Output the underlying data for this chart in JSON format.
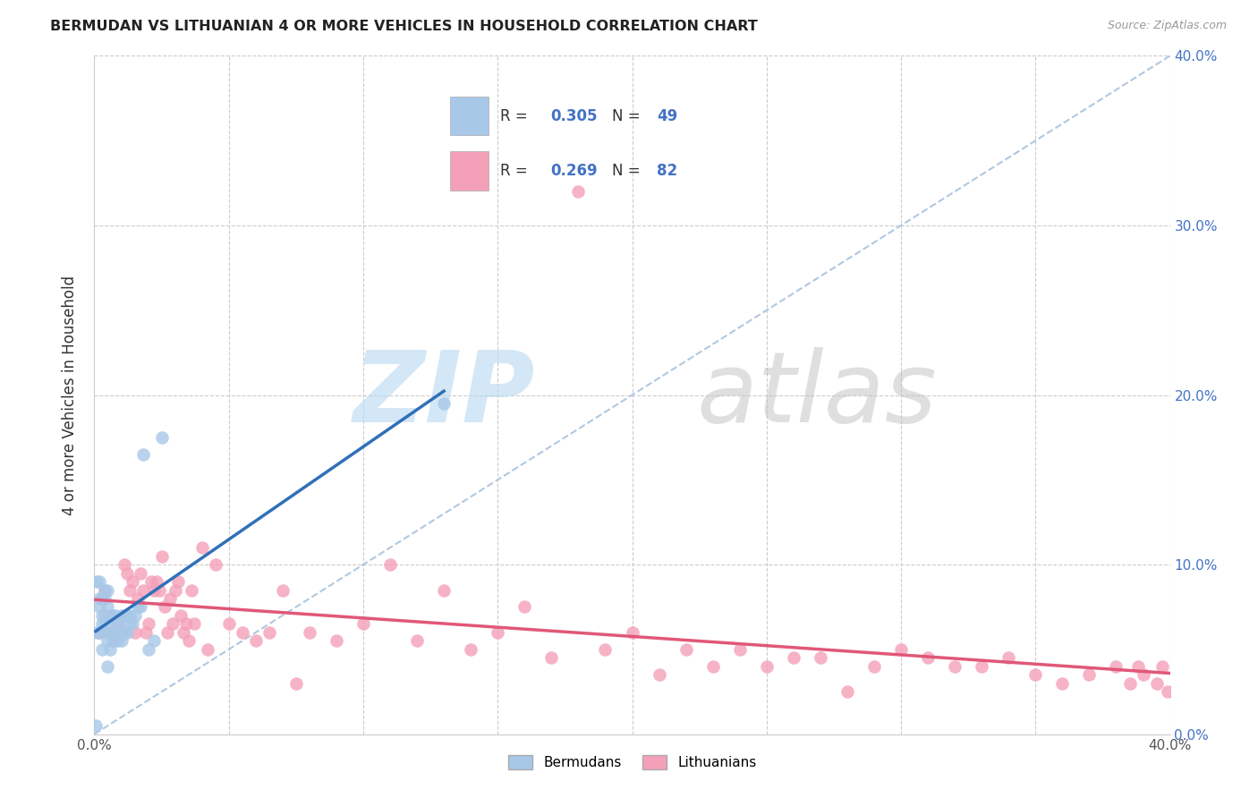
{
  "title": "BERMUDAN VS LITHUANIAN 4 OR MORE VEHICLES IN HOUSEHOLD CORRELATION CHART",
  "source": "Source: ZipAtlas.com",
  "ylabel": "4 or more Vehicles in Household",
  "bermudan_color": "#a8c8e8",
  "lithuanian_color": "#f4a0b8",
  "bermudan_line_color": "#3070b8",
  "lithuanian_line_color": "#e05878",
  "trendline_dashed_color": "#b0c8e0",
  "R_bermudan": 0.305,
  "N_bermudan": 49,
  "R_lithuanian": 0.269,
  "N_lithuanian": 82,
  "xlim": [
    0.0,
    0.4
  ],
  "ylim": [
    0.0,
    0.4
  ],
  "bermudan_x": [
    0.0005,
    0.001,
    0.001,
    0.002,
    0.002,
    0.002,
    0.002,
    0.003,
    0.003,
    0.003,
    0.003,
    0.004,
    0.004,
    0.004,
    0.004,
    0.005,
    0.005,
    0.005,
    0.005,
    0.005,
    0.006,
    0.006,
    0.006,
    0.007,
    0.007,
    0.007,
    0.008,
    0.008,
    0.008,
    0.009,
    0.009,
    0.01,
    0.01,
    0.01,
    0.011,
    0.011,
    0.012,
    0.012,
    0.013,
    0.013,
    0.014,
    0.015,
    0.016,
    0.017,
    0.018,
    0.02,
    0.022,
    0.025,
    0.13
  ],
  "bermudan_y": [
    0.005,
    0.06,
    0.09,
    0.06,
    0.075,
    0.08,
    0.09,
    0.05,
    0.065,
    0.07,
    0.08,
    0.065,
    0.07,
    0.08,
    0.085,
    0.04,
    0.055,
    0.06,
    0.075,
    0.085,
    0.05,
    0.06,
    0.07,
    0.055,
    0.06,
    0.07,
    0.055,
    0.065,
    0.07,
    0.055,
    0.065,
    0.055,
    0.06,
    0.07,
    0.06,
    0.07,
    0.06,
    0.07,
    0.065,
    0.07,
    0.065,
    0.07,
    0.075,
    0.075,
    0.165,
    0.05,
    0.055,
    0.175,
    0.195
  ],
  "lithuanian_x": [
    0.002,
    0.003,
    0.004,
    0.005,
    0.006,
    0.007,
    0.008,
    0.009,
    0.01,
    0.011,
    0.012,
    0.013,
    0.014,
    0.015,
    0.016,
    0.017,
    0.018,
    0.019,
    0.02,
    0.021,
    0.022,
    0.023,
    0.024,
    0.025,
    0.026,
    0.027,
    0.028,
    0.029,
    0.03,
    0.031,
    0.032,
    0.033,
    0.034,
    0.035,
    0.036,
    0.037,
    0.04,
    0.042,
    0.045,
    0.05,
    0.055,
    0.06,
    0.065,
    0.07,
    0.075,
    0.08,
    0.09,
    0.1,
    0.11,
    0.12,
    0.13,
    0.14,
    0.15,
    0.16,
    0.17,
    0.18,
    0.19,
    0.2,
    0.21,
    0.22,
    0.23,
    0.24,
    0.25,
    0.26,
    0.27,
    0.28,
    0.29,
    0.3,
    0.31,
    0.32,
    0.33,
    0.34,
    0.35,
    0.36,
    0.37,
    0.38,
    0.385,
    0.388,
    0.39,
    0.395,
    0.397,
    0.399
  ],
  "lithuanian_y": [
    0.06,
    0.08,
    0.085,
    0.06,
    0.07,
    0.055,
    0.06,
    0.065,
    0.06,
    0.1,
    0.095,
    0.085,
    0.09,
    0.06,
    0.08,
    0.095,
    0.085,
    0.06,
    0.065,
    0.09,
    0.085,
    0.09,
    0.085,
    0.105,
    0.075,
    0.06,
    0.08,
    0.065,
    0.085,
    0.09,
    0.07,
    0.06,
    0.065,
    0.055,
    0.085,
    0.065,
    0.11,
    0.05,
    0.1,
    0.065,
    0.06,
    0.055,
    0.06,
    0.085,
    0.03,
    0.06,
    0.055,
    0.065,
    0.1,
    0.055,
    0.085,
    0.05,
    0.06,
    0.075,
    0.045,
    0.32,
    0.05,
    0.06,
    0.035,
    0.05,
    0.04,
    0.05,
    0.04,
    0.045,
    0.045,
    0.025,
    0.04,
    0.05,
    0.045,
    0.04,
    0.04,
    0.045,
    0.035,
    0.03,
    0.035,
    0.04,
    0.03,
    0.04,
    0.035,
    0.03,
    0.04,
    0.025
  ]
}
